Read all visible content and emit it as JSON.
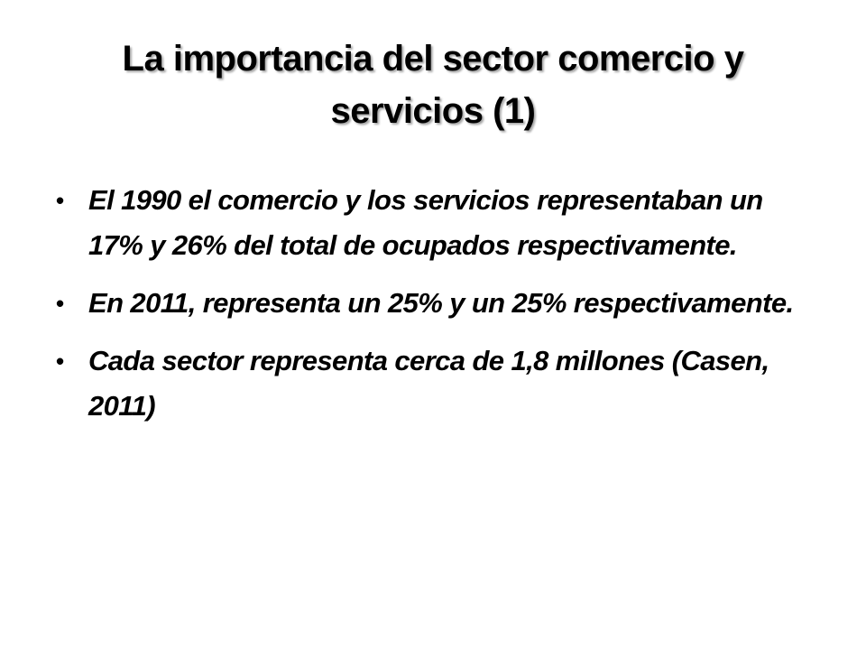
{
  "slide": {
    "title_lines": [
      "La importancia del sector comercio y",
      "servicios (1)"
    ],
    "bullet_glyph": "•",
    "bullets": [
      "El 1990 el comercio y los servicios representaban un 17% y 26% del total de ocupados respectivamente.",
      "En 2011, representa un 25% y un 25% respectivamente.",
      "Cada sector representa cerca de 1,8 millones (Casen, 2011)"
    ]
  }
}
